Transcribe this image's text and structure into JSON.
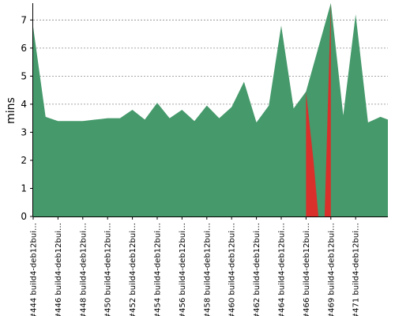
{
  "chart_data": {
    "type": "area",
    "title": "",
    "xlabel": "",
    "ylabel": "mins",
    "ylim": [
      0,
      7.6
    ],
    "yticks": [
      0,
      1,
      2,
      3,
      4,
      5,
      6,
      7
    ],
    "grid": true,
    "colors": {
      "success": "#45996b",
      "failure": "#d9302c",
      "grid": "#888888",
      "axis": "#000000"
    },
    "x_tick_labels": [
      "#444 build4-deb12bui…",
      "#446 build4-deb12bui…",
      "#448 build4-deb12bui…",
      "#450 build4-deb12bui…",
      "#452 build4-deb12bui…",
      "#454 build4-deb12bui…",
      "#456 build4-deb12bui…",
      "#458 build4-deb12bui…",
      "#460 build4-deb12bui…",
      "#462 build4-deb12bui…",
      "#464 build4-deb12bui…",
      "#466 build4-deb12bui…",
      "#469 build4-deb12bui…",
      "#471 build4-deb12bui…"
    ],
    "x_tick_positions": [
      0,
      2,
      4,
      6,
      8,
      10,
      12,
      14,
      16,
      18,
      20,
      22,
      24,
      26
    ],
    "x_range": [
      0,
      28.6
    ],
    "series": [
      {
        "status": "success",
        "points": [
          [
            0,
            6.75
          ],
          [
            1,
            3.55
          ],
          [
            2,
            3.4
          ],
          [
            3,
            3.4
          ],
          [
            4,
            3.4
          ],
          [
            5,
            3.45
          ],
          [
            6,
            3.5
          ],
          [
            7,
            3.5
          ],
          [
            8,
            3.8
          ],
          [
            9,
            3.45
          ],
          [
            10,
            4.05
          ],
          [
            11,
            3.5
          ],
          [
            12,
            3.8
          ],
          [
            13,
            3.4
          ],
          [
            14,
            3.95
          ],
          [
            15,
            3.5
          ],
          [
            16,
            3.9
          ],
          [
            17,
            4.8
          ],
          [
            18,
            3.35
          ],
          [
            19,
            3.95
          ],
          [
            20,
            6.8
          ],
          [
            21,
            3.85
          ],
          [
            22,
            4.45
          ],
          [
            24,
            7.6
          ],
          [
            25,
            3.6
          ],
          [
            26,
            7.2
          ],
          [
            27,
            3.35
          ],
          [
            28,
            3.55
          ],
          [
            28.6,
            3.45
          ]
        ]
      },
      {
        "status": "failure",
        "points": [
          [
            22,
            4.45
          ],
          [
            22.6,
            2.0
          ],
          [
            23,
            0.0
          ],
          [
            23.5,
            0.0
          ],
          [
            24,
            7.6
          ]
        ]
      }
    ]
  }
}
